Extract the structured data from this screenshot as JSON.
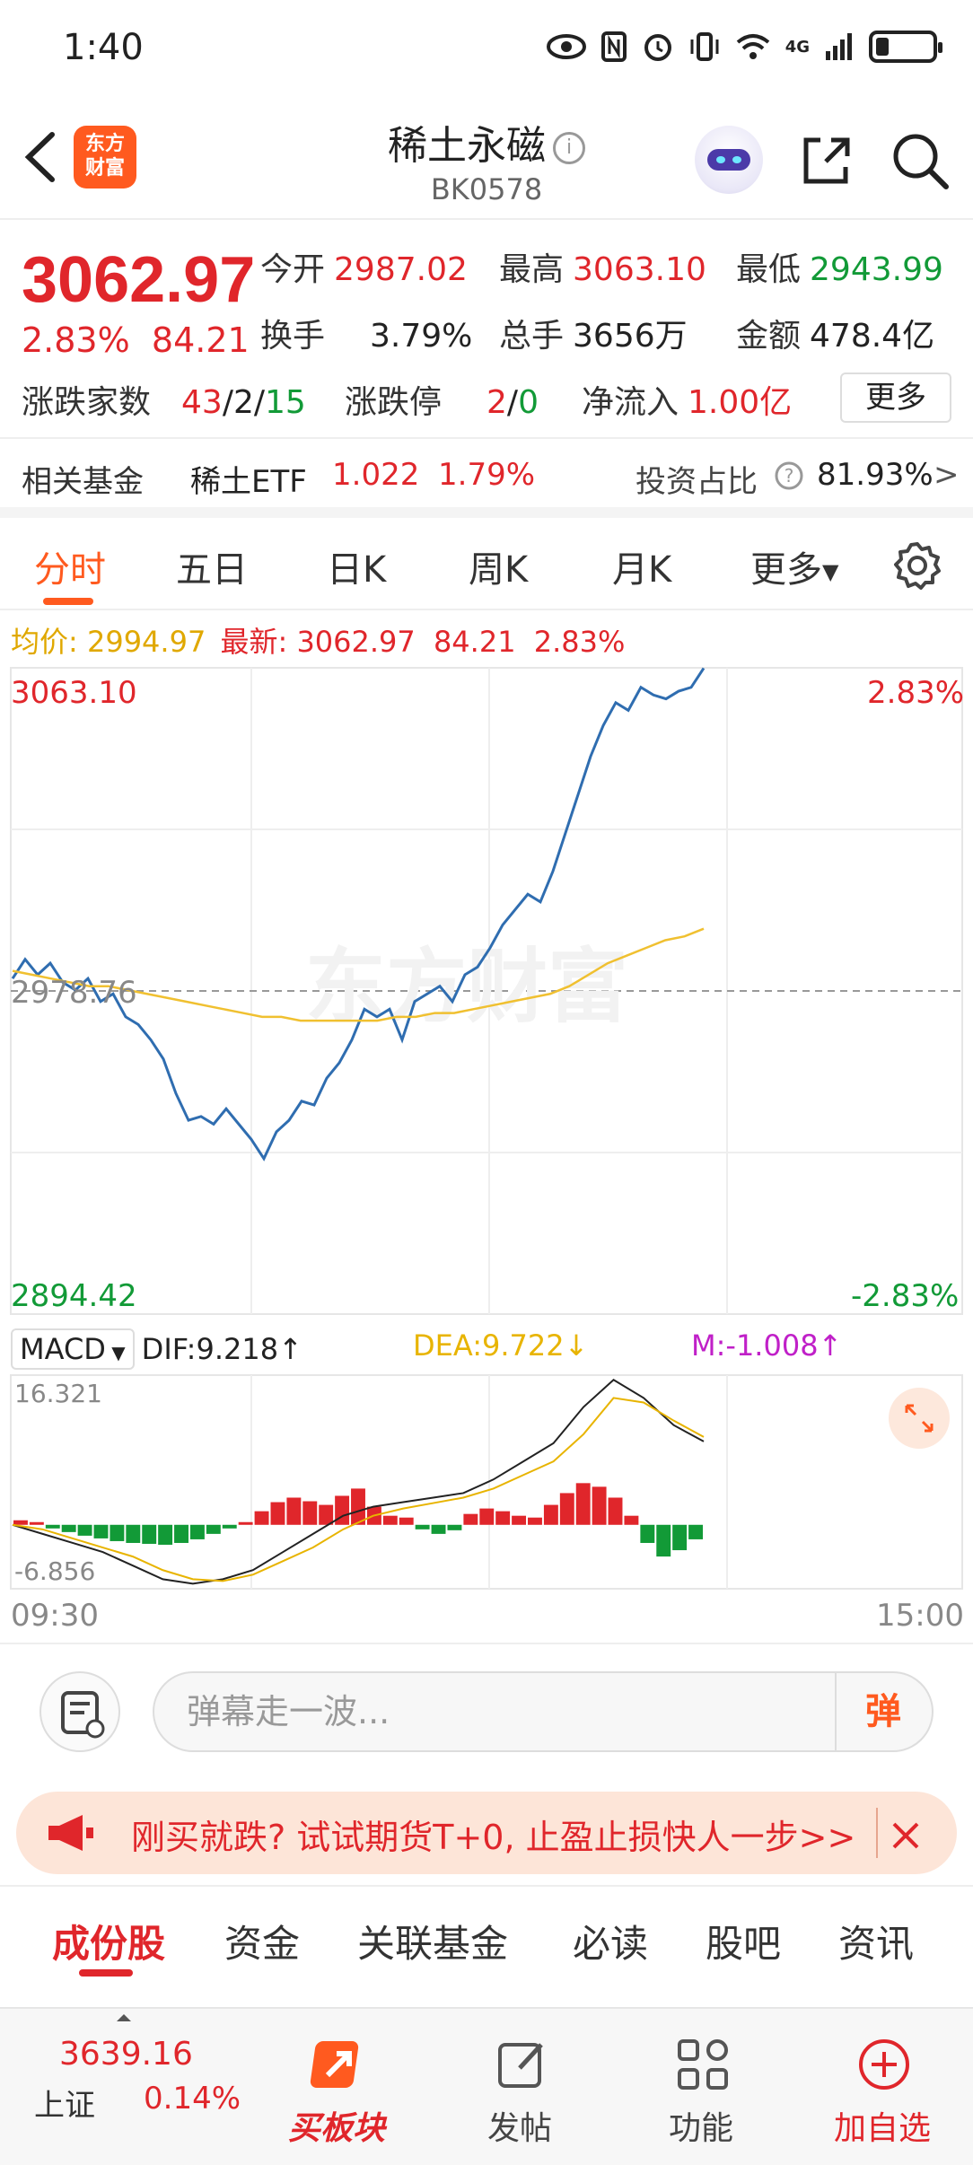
{
  "status_bar": {
    "time": "1:40",
    "network": "4G"
  },
  "header": {
    "back_glyph": "‹",
    "app_logo_line1": "东方",
    "app_logo_line2": "财富",
    "title": "稀土永磁",
    "info_glyph": "i",
    "code": "BK0578"
  },
  "quote": {
    "price": "3062.97",
    "change_pct": "2.83%",
    "change_val": "84.21",
    "open_label": "今开",
    "open": "2987.02",
    "high_label": "最高",
    "high": "3063.10",
    "low_label": "最低",
    "low": "2943.99",
    "turnover_label": "换手",
    "turnover": "3.79%",
    "volume_label": "总手",
    "volume": "3656万",
    "amount_label": "金额",
    "amount": "478.4亿",
    "advdec_label": "涨跌家数",
    "adv": "43",
    "flat": "2",
    "dec": "15",
    "limit_label": "涨跌停",
    "limit_up": "2",
    "limit_down": "0",
    "netflow_label": "净流入",
    "netflow": "1.00亿",
    "more_label": "更多"
  },
  "fund": {
    "label": "相关基金",
    "name": "稀土ETF",
    "price": "1.022",
    "pct": "1.79%",
    "ratio_label": "投资占比",
    "ratio": "81.93%",
    "arrow": ">"
  },
  "period_tabs": [
    "分时",
    "五日",
    "日K",
    "周K",
    "月K",
    "更多"
  ],
  "chart_header": {
    "avg_label": "均价:",
    "avg": "2994.97",
    "latest_label": "最新:",
    "latest": "3062.97",
    "latest_chg": "84.21",
    "latest_pct": "2.83%"
  },
  "chart_data": {
    "type": "line",
    "x_start_label": "09:30",
    "x_end_label": "15:00",
    "y_max_label": "3063.10",
    "y_min_label": "2894.42",
    "y_mid_label": "2978.76",
    "pct_max_label": "2.83%",
    "pct_min_label": "-2.83%",
    "ylim": [
      2894.42,
      3063.1
    ],
    "series": [
      {
        "name": "最新",
        "values": [
          2982,
          2987,
          2983,
          2986,
          2981,
          2979,
          2982,
          2976,
          2978,
          2972,
          2970,
          2966,
          2961,
          2952,
          2945,
          2946,
          2944,
          2948,
          2944,
          2940,
          2935,
          2942,
          2945,
          2950,
          2949,
          2956,
          2960,
          2966,
          2974,
          2972,
          2974,
          2966,
          2976,
          2978,
          2980,
          2976,
          2983,
          2985,
          2990,
          2996,
          3000,
          3004,
          3002,
          3010,
          3020,
          3030,
          3040,
          3048,
          3054,
          3052,
          3058,
          3056,
          3055,
          3057,
          3058,
          3063
        ]
      },
      {
        "name": "均价",
        "values": [
          2984,
          2983,
          2982,
          2981,
          2980,
          2980,
          2979,
          2978,
          2977,
          2976,
          2975,
          2974,
          2973,
          2972,
          2972,
          2971,
          2971,
          2971,
          2971,
          2971,
          2972,
          2972,
          2973,
          2973,
          2974,
          2975,
          2976,
          2977,
          2978,
          2980,
          2983,
          2986,
          2988,
          2990,
          2992,
          2993,
          2995
        ]
      }
    ]
  },
  "macd": {
    "selector": "MACD",
    "dif_label": "DIF:9.218",
    "dea_label": "DEA:9.722",
    "m_label": "M:-1.008",
    "ymax": "16.321",
    "ymin": "-6.856",
    "bars": [
      0.5,
      0.3,
      -0.4,
      -0.8,
      -1.2,
      -1.5,
      -1.8,
      -2.0,
      -2.1,
      -2.2,
      -2.0,
      -1.6,
      -1.0,
      -0.4,
      0.3,
      1.5,
      2.5,
      3.0,
      2.6,
      2.2,
      3.2,
      4.0,
      2.0,
      1.0,
      0.8,
      -0.5,
      -1.0,
      -0.6,
      1.2,
      1.8,
      1.5,
      1.0,
      0.8,
      2.2,
      3.5,
      4.6,
      4.2,
      3.0,
      1.0,
      -2.0,
      -3.5,
      -2.8,
      -1.6
    ]
  },
  "comment": {
    "placeholder": "弹幕走一波...",
    "danmu_label": "弹"
  },
  "promo": {
    "text": "刚买就跌? 试试期货T+0, 止盈止损快人一步>>"
  },
  "content_tabs": [
    "成份股",
    "资金",
    "关联基金",
    "必读",
    "股吧",
    "资讯"
  ],
  "bottom_nav": {
    "index_value": "3639.16",
    "index_name": "上证",
    "index_pct": "0.14%",
    "items": [
      "买板块",
      "发帖",
      "功能",
      "加自选"
    ]
  },
  "colors": {
    "up": "#e0262b",
    "down": "#129a37",
    "accent": "#ff5a1f",
    "price_line": "#2f6db0",
    "avg_line": "#f0c030"
  }
}
